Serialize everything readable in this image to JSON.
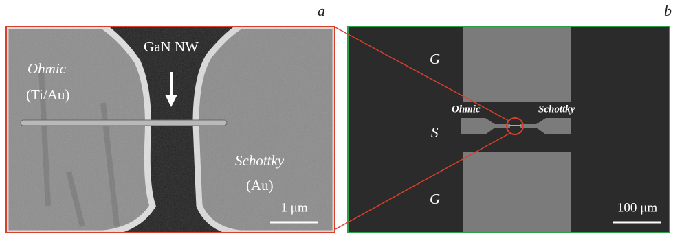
{
  "panels": [
    {
      "label": "a",
      "nanowire": "GaN NW",
      "left_contact": {
        "name": "Ohmic",
        "material": "(Ti/Au)"
      },
      "right_contact": {
        "name": "Schottky",
        "material": "(Au)"
      },
      "scale_bar": "1 μm"
    },
    {
      "label": "b",
      "electrodes": [
        "G",
        "S",
        "G"
      ],
      "left_contact": "Ohmic",
      "right_contact": "Schottky",
      "scale_bar": "100 μm"
    }
  ]
}
